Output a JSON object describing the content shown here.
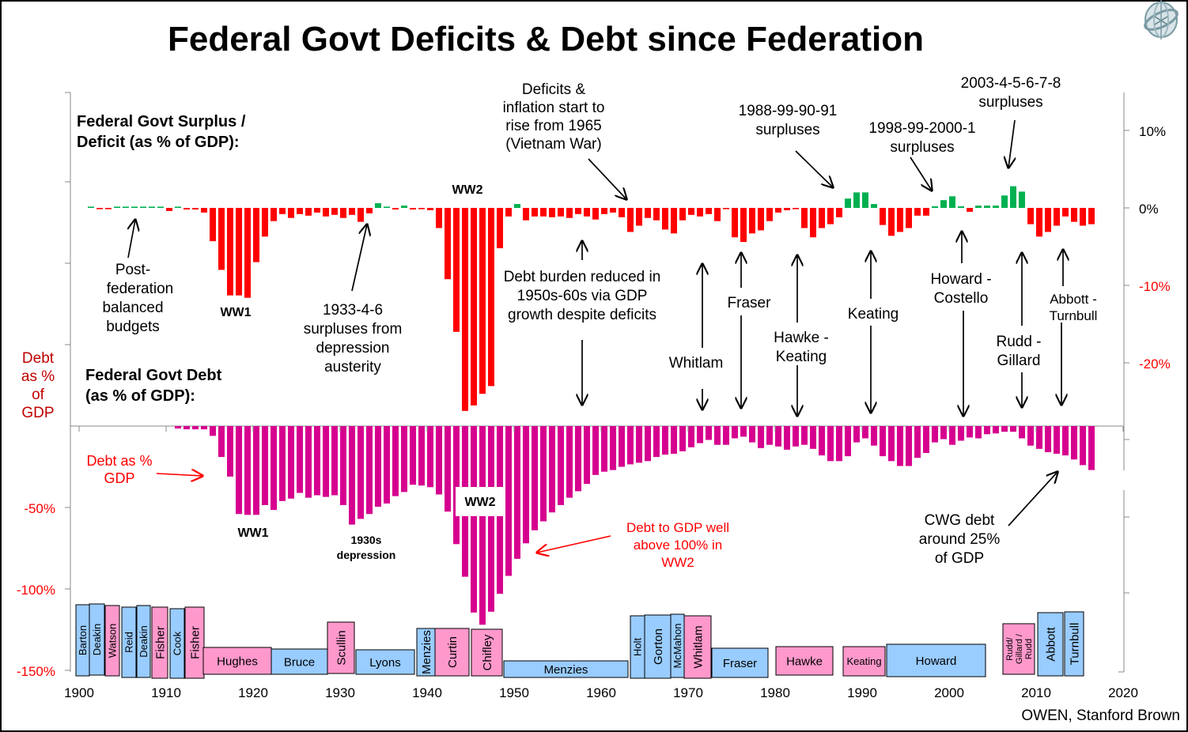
{
  "title": "Federal Govt Deficits & Debt since Federation",
  "credit": "OWEN, Stanford Brown",
  "colors": {
    "deficit": "#ff0000",
    "surplus": "#00b050",
    "debt": "#d6008f",
    "liberal": "#99ccff",
    "labor": "#ff99cc",
    "annotation_red": "#ff0000",
    "axis_label_red": "#c00000"
  },
  "chart_data": [
    {
      "type": "bar",
      "name": "surplus-deficit",
      "title": "Federal Govt Surplus / Deficit (as % of GDP):",
      "title_lines": [
        "Federal Govt Surplus /",
        "Deficit (as % of GDP):"
      ],
      "xlabel": "",
      "ylabel": "",
      "y_axis_side": "right",
      "ylim": [
        -28,
        14
      ],
      "yticks": [
        10,
        0,
        -10,
        -20
      ],
      "ytick_labels": [
        "10%",
        "0%",
        "-10%",
        "-20%"
      ],
      "x": [
        1901,
        1902,
        1903,
        1904,
        1905,
        1906,
        1907,
        1908,
        1909,
        1910,
        1911,
        1912,
        1913,
        1914,
        1915,
        1916,
        1917,
        1918,
        1919,
        1920,
        1921,
        1922,
        1923,
        1924,
        1925,
        1926,
        1927,
        1928,
        1929,
        1930,
        1931,
        1932,
        1933,
        1934,
        1935,
        1936,
        1937,
        1938,
        1939,
        1940,
        1941,
        1942,
        1943,
        1944,
        1945,
        1946,
        1947,
        1948,
        1949,
        1950,
        1951,
        1952,
        1953,
        1954,
        1955,
        1956,
        1957,
        1958,
        1959,
        1960,
        1961,
        1962,
        1963,
        1964,
        1965,
        1966,
        1967,
        1968,
        1969,
        1970,
        1971,
        1972,
        1973,
        1974,
        1975,
        1976,
        1977,
        1978,
        1979,
        1980,
        1981,
        1982,
        1983,
        1984,
        1985,
        1986,
        1987,
        1988,
        1989,
        1990,
        1991,
        1992,
        1993,
        1994,
        1995,
        1996,
        1997,
        1998,
        1999,
        2000,
        2001,
        2002,
        2003,
        2004,
        2005,
        2006,
        2007,
        2008,
        2009,
        2010,
        2011,
        2012,
        2013,
        2014,
        2015,
        2016
      ],
      "values": [
        0.1,
        -0.1,
        -0.1,
        0.1,
        0.1,
        0.1,
        0.1,
        0.1,
        0.1,
        -0.4,
        0.1,
        -0.2,
        -0.2,
        -0.6,
        -4.3,
        -8.0,
        -11.3,
        -11.3,
        -11.6,
        -7.0,
        -3.7,
        -1.7,
        -0.8,
        -1.3,
        -0.8,
        -1.0,
        -0.6,
        -1.1,
        -0.9,
        -1.3,
        -0.9,
        -1.8,
        -0.7,
        0.6,
        0.1,
        -0.2,
        0.3,
        -0.2,
        -0.1,
        -0.3,
        -2.6,
        -9.2,
        -16.0,
        -26.2,
        -25.5,
        -24.0,
        -23.0,
        -5.2,
        -1.1,
        0.5,
        -1.6,
        -1.1,
        -1.1,
        -1.2,
        -1.1,
        -1.3,
        -0.8,
        -1.1,
        -1.5,
        -0.8,
        -0.6,
        -1.2,
        -3.1,
        -2.3,
        -1.3,
        -1.6,
        -2.8,
        -3.3,
        -1.6,
        -0.9,
        -1.1,
        -0.8,
        -1.7,
        -0.1,
        -3.8,
        -4.4,
        -3.3,
        -2.9,
        -1.7,
        -0.6,
        -0.3,
        -0.1,
        -2.6,
        -3.8,
        -2.6,
        -2.1,
        -1.2,
        1.2,
        2.0,
        2.0,
        0.5,
        -2.2,
        -3.6,
        -3.1,
        -2.6,
        -1.0,
        -1.0,
        0.2,
        1.0,
        1.5,
        0.2,
        -0.5,
        0.3,
        0.3,
        0.3,
        1.6,
        2.8,
        2.1,
        -2.1,
        -3.7,
        -3.1,
        -2.3,
        -1.1,
        -1.8,
        -2.3,
        -2.1
      ],
      "annotations": [
        {
          "text": [
            "Post-",
            "federation",
            "balanced",
            "budgets"
          ],
          "target_year": 1906
        },
        {
          "text": [
            "WW1"
          ],
          "bold": true
        },
        {
          "text": [
            "1933-4-6",
            "surpluses from",
            "depression",
            "austerity"
          ],
          "target_year": 1934
        },
        {
          "text": [
            "WW2"
          ],
          "bold": true
        },
        {
          "text": [
            "Deficits &",
            "inflation start to",
            "rise from 1965",
            "(Vietnam War)"
          ],
          "target_year": 1965
        },
        {
          "text": [
            "1988-99-90-91",
            "surpluses"
          ],
          "target_year": 1988
        },
        {
          "text": [
            "1998-99-2000-1",
            "surpluses"
          ],
          "target_year": 1999
        },
        {
          "text": [
            "2003-4-5-6-7-8",
            "surpluses"
          ],
          "target_year": 2006
        }
      ]
    },
    {
      "type": "bar",
      "name": "debt",
      "title": "Federal Govt Debt (as % of GDP):",
      "title_lines": [
        "Federal Govt Debt",
        "(as % of GDP):"
      ],
      "ylabel_lines": [
        "Debt",
        "as %",
        "of",
        "GDP"
      ],
      "y_axis_side": "left",
      "ylim": [
        -150,
        0
      ],
      "yticks": [
        -50,
        -100,
        -150
      ],
      "ytick_labels": [
        "-50%",
        "-100%",
        "-150%"
      ],
      "x": [
        1911,
        1912,
        1913,
        1914,
        1915,
        1916,
        1917,
        1918,
        1919,
        1920,
        1921,
        1922,
        1923,
        1924,
        1925,
        1926,
        1927,
        1928,
        1929,
        1930,
        1931,
        1932,
        1933,
        1934,
        1935,
        1936,
        1937,
        1938,
        1939,
        1940,
        1941,
        1942,
        1943,
        1944,
        1945,
        1946,
        1947,
        1948,
        1949,
        1950,
        1951,
        1952,
        1953,
        1954,
        1955,
        1956,
        1957,
        1958,
        1959,
        1960,
        1961,
        1962,
        1963,
        1964,
        1965,
        1966,
        1967,
        1968,
        1969,
        1970,
        1971,
        1972,
        1973,
        1974,
        1975,
        1976,
        1977,
        1978,
        1979,
        1980,
        1981,
        1982,
        1983,
        1984,
        1985,
        1986,
        1987,
        1988,
        1989,
        1990,
        1991,
        1992,
        1993,
        1994,
        1995,
        1996,
        1997,
        1998,
        1999,
        2000,
        2001,
        2002,
        2003,
        2004,
        2005,
        2006,
        2007,
        2008,
        2009,
        2010,
        2011,
        2012,
        2013,
        2014,
        2015,
        2016
      ],
      "values": [
        -1.5,
        -2,
        -2,
        -2,
        -6,
        -19,
        -31,
        -54,
        -54.5,
        -54.5,
        -48.5,
        -51.5,
        -46,
        -44.5,
        -41,
        -44,
        -42.5,
        -43.5,
        -42.5,
        -48.5,
        -60.5,
        -57,
        -54,
        -49.5,
        -47.5,
        -43,
        -40.5,
        -36,
        -36.5,
        -37.5,
        -42,
        -52.5,
        -72.5,
        -92.5,
        -114.5,
        -122,
        -114,
        -103,
        -92,
        -81.5,
        -72,
        -64,
        -58.5,
        -53,
        -48.5,
        -44,
        -40,
        -35.5,
        -30,
        -28,
        -27,
        -25,
        -23.5,
        -22.5,
        -21.5,
        -19,
        -17.5,
        -17,
        -15.5,
        -13,
        -10.5,
        -8.5,
        -11.5,
        -11.5,
        -7.5,
        -6.5,
        -10,
        -13.5,
        -11.5,
        -12.5,
        -14.5,
        -12.5,
        -11.5,
        -14,
        -18,
        -21.5,
        -21.5,
        -18.5,
        -10,
        -7.5,
        -12,
        -18.5,
        -21.5,
        -24.5,
        -24.5,
        -19.5,
        -16.5,
        -10,
        -8,
        -11.5,
        -9,
        -7,
        -7.5,
        -5,
        -4.5,
        -3.5,
        -3.5,
        -7.5,
        -12,
        -14,
        -16,
        -17,
        -18,
        -20.5,
        -24,
        -27
      ],
      "annotations": [
        {
          "text": [
            "Debt as %",
            "GDP"
          ],
          "color": "red"
        },
        {
          "text": [
            "WW1"
          ],
          "bold": true
        },
        {
          "text": [
            "1930s",
            "depression"
          ],
          "bold": true
        },
        {
          "text": [
            "WW2"
          ],
          "bold": true
        },
        {
          "text": [
            "Debt to GDP well",
            "above 100%  in",
            "WW2"
          ],
          "color": "red"
        },
        {
          "text": [
            "CWG debt",
            "around 25%",
            "of GDP"
          ]
        }
      ]
    }
  ],
  "x_axis": {
    "ticks": [
      1900,
      1910,
      1920,
      1930,
      1940,
      1950,
      1960,
      1970,
      1980,
      1990,
      2000,
      2010,
      2020
    ],
    "labels": [
      "1900",
      "1910",
      "1920",
      "1930",
      "1940",
      "1950",
      "1960",
      "1970",
      "1980",
      "1990",
      "2000",
      "2010",
      "2020"
    ],
    "range": [
      1900,
      2020
    ]
  },
  "era_annotations": [
    {
      "text": [
        "Debt burden reduced in",
        "1950s-60s via GDP",
        "growth despite deficits"
      ],
      "year": 1959
    },
    {
      "text": [
        "Whitlam"
      ],
      "year": 1973
    },
    {
      "text": [
        "Fraser"
      ],
      "year": 1977
    },
    {
      "text": [
        "Hawke -",
        "Keating"
      ],
      "year": 1984
    },
    {
      "text": [
        "Keating"
      ],
      "year": 1992
    },
    {
      "text": [
        "Howard -",
        "Costello"
      ],
      "year": 2003
    },
    {
      "text": [
        "Rudd -",
        "Gillard"
      ],
      "year": 2010
    },
    {
      "text": [
        "Abbott -",
        "Turnbull"
      ],
      "year": 2014
    }
  ],
  "prime_ministers": [
    {
      "name": "Barton",
      "start": 1901.0,
      "end": 1903.6,
      "party": "liberal",
      "vertical": true
    },
    {
      "name": "Deakin",
      "start": 1903.6,
      "end": 1904.3,
      "party": "liberal",
      "vertical": true
    },
    {
      "name": "Watson",
      "start": 1904.3,
      "end": 1905.9,
      "party": "labor",
      "vertical": true
    },
    {
      "name": "Reid",
      "start": 1905.0,
      "end": 1906.6,
      "party": "liberal",
      "vertical": true
    },
    {
      "name": "Deakin",
      "start": 1906.6,
      "end": 1908.3,
      "party": "liberal",
      "vertical": true
    },
    {
      "name": "Fisher",
      "start": 1908.3,
      "end": 1910.1,
      "party": "labor",
      "vertical": true
    },
    {
      "name": "Cook",
      "start": 1910.4,
      "end": 1912.1,
      "party": "liberal",
      "vertical": true
    },
    {
      "name": "Fisher",
      "start": 1912.1,
      "end": 1914.4,
      "party": "labor",
      "vertical": true
    },
    {
      "name": "Hughes",
      "start": 1914.4,
      "end": 1922.4,
      "party": "labor",
      "vertical": false
    },
    {
      "name": "Bruce",
      "start": 1922.4,
      "end": 1929.0,
      "party": "liberal",
      "vertical": false
    },
    {
      "name": "Scullin",
      "start": 1929.5,
      "end": 1932.6,
      "party": "labor",
      "vertical": true
    },
    {
      "name": "Lyons",
      "start": 1932.8,
      "end": 1939.4,
      "party": "liberal",
      "vertical": false
    },
    {
      "name": "Menzies",
      "start": 1939.6,
      "end": 1941.6,
      "party": "liberal",
      "vertical": true
    },
    {
      "name": "Curtin",
      "start": 1941.6,
      "end": 1945.6,
      "party": "labor",
      "vertical": true
    },
    {
      "name": "Chifley",
      "start": 1945.9,
      "end": 1949.4,
      "party": "labor",
      "vertical": true
    },
    {
      "name": "Menzies",
      "start": 1949.6,
      "end": 1964.0,
      "party": "liberal",
      "vertical": false
    },
    {
      "name": "Holt",
      "start": 1964.3,
      "end": 1965.8,
      "party": "liberal",
      "vertical": true
    },
    {
      "name": "Gorton",
      "start": 1965.9,
      "end": 1969.0,
      "party": "liberal",
      "vertical": true
    },
    {
      "name": "McMahon",
      "start": 1969.0,
      "end": 1970.6,
      "party": "liberal",
      "vertical": true
    },
    {
      "name": "Whitlam",
      "start": 1970.6,
      "end": 1973.4,
      "party": "labor",
      "vertical": true
    },
    {
      "name": "Fraser",
      "start": 1973.6,
      "end": 1980.1,
      "party": "liberal",
      "vertical": false
    },
    {
      "name": "Hawke",
      "start": 1980.1,
      "end": 1986.7,
      "party": "labor",
      "vertical": false
    },
    {
      "name": "Keating",
      "start": 1986.8,
      "end": 1991.0,
      "party": "labor",
      "vertical": false
    },
    {
      "name": "Howard",
      "start": 1991.0,
      "end": 2002.6,
      "party": "liberal",
      "vertical": false
    },
    {
      "name": "Rudd/\nGillard /\nRudd",
      "start": 2002.8,
      "end": 2006.4,
      "party": "labor",
      "vertical": true
    },
    {
      "name": "Abbott",
      "start": 2006.4,
      "end": 2009.0,
      "party": "liberal",
      "vertical": true
    },
    {
      "name": "Turnbull",
      "start": 2009.0,
      "end": 2011.1,
      "party": "liberal",
      "vertical": true
    }
  ]
}
